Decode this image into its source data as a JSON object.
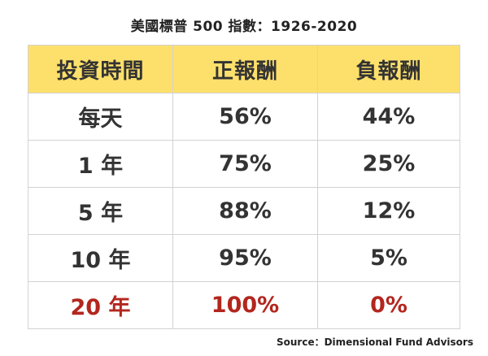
{
  "title": "美國標普 500 指數：1926-2020",
  "source": "Source：Dimensional Fund Advisors",
  "colors": {
    "header_bg": "#fde06b",
    "text": "#333333",
    "highlight": "#b3261e",
    "border": "#d2d2d2"
  },
  "chart_data": {
    "type": "table",
    "title": "美國標普 500 指數：1926-2020",
    "columns": [
      "投資時間",
      "正報酬",
      "負報酬"
    ],
    "rows": [
      [
        "每天",
        "56%",
        "44%"
      ],
      [
        "1 年",
        "75%",
        "25%"
      ],
      [
        "5 年",
        "88%",
        "12%"
      ],
      [
        "10 年",
        "95%",
        "5%"
      ],
      [
        "20 年",
        "100%",
        "0%"
      ]
    ],
    "highlight_row": 4
  }
}
